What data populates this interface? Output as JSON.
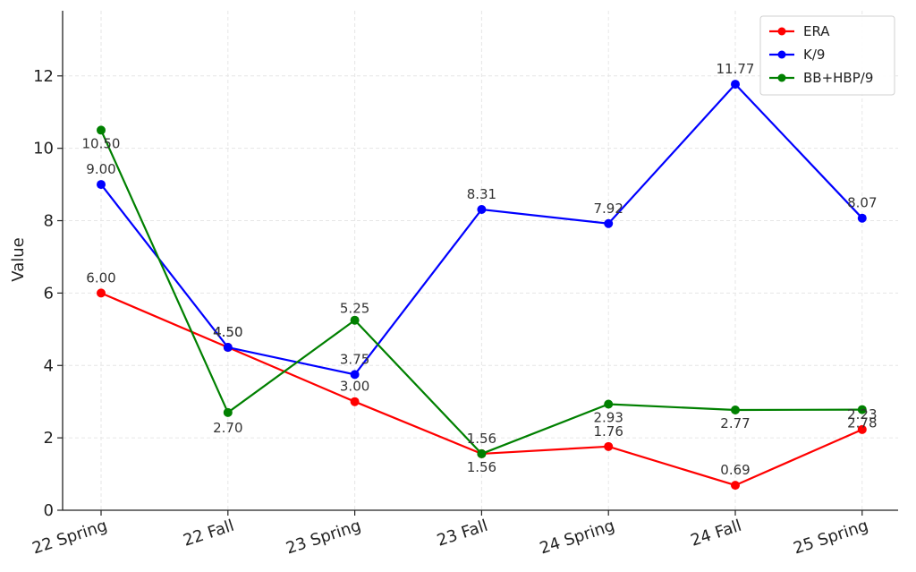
{
  "chart_data": {
    "type": "line",
    "categories": [
      "22 Spring",
      "22 Fall",
      "23 Spring",
      "23 Fall",
      "24 Spring",
      "24 Fall",
      "25 Spring"
    ],
    "series": [
      {
        "name": "ERA",
        "color": "#ff0000",
        "values": [
          6.0,
          4.5,
          3.0,
          1.56,
          1.76,
          0.69,
          2.23
        ],
        "labels": [
          "6.00",
          "4.50",
          "3.00",
          "1.56",
          "1.76",
          "0.69",
          "2.23"
        ]
      },
      {
        "name": "K/9",
        "color": "#0000ff",
        "values": [
          9.0,
          4.5,
          3.75,
          8.31,
          7.92,
          11.77,
          8.07
        ],
        "labels": [
          "9.00",
          "4.50",
          "3.75",
          "8.31",
          "7.92",
          "11.77",
          "8.07"
        ]
      },
      {
        "name": "BB+HBP/9",
        "color": "#008000",
        "values": [
          10.5,
          2.7,
          5.25,
          1.56,
          2.93,
          2.77,
          2.78
        ],
        "labels": [
          "10.50",
          "2.70",
          "5.25",
          "1.56",
          "2.93",
          "2.77",
          "2.78"
        ]
      }
    ],
    "title": "",
    "xlabel": "",
    "ylabel": "Value",
    "ylim": [
      0,
      13.8
    ],
    "yticks": [
      0,
      2,
      4,
      6,
      8,
      10,
      12
    ],
    "grid": true,
    "legend_position": "top-right"
  }
}
